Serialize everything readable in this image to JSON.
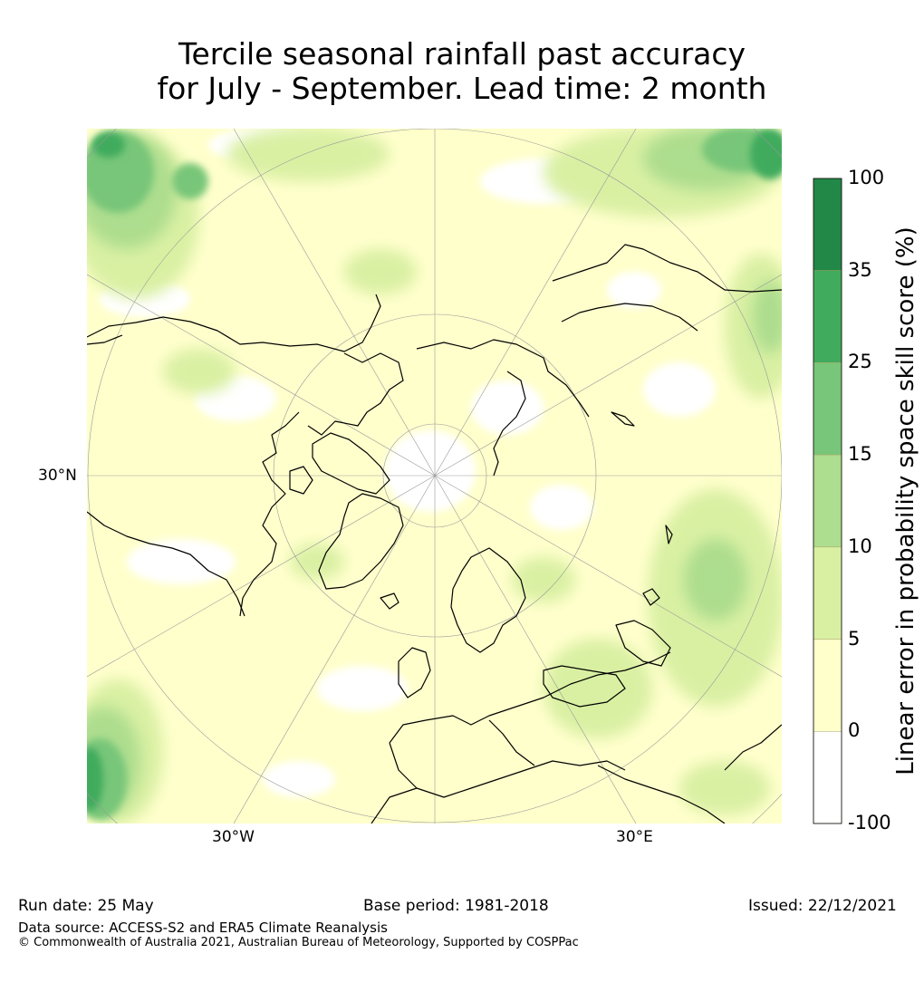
{
  "title_line1": "Tercile seasonal rainfall past accuracy",
  "title_line2": "for July - September. Lead time: 2 month",
  "map": {
    "projection": "north-polar-stereographic",
    "graticule_labels": {
      "lat_left": "30°N",
      "lon_bottom_left": "30°W",
      "lon_bottom_right": "30°E"
    },
    "ocean_color": "#ffffff",
    "coastline_color": "#000000",
    "dominant_class": "0-5"
  },
  "colorbar": {
    "label": "Linear error in probability space skill score (%)",
    "ticks": [
      "100",
      "35",
      "25",
      "15",
      "10",
      "5",
      "0",
      "-100"
    ],
    "classes": [
      {
        "range": "35-100",
        "color": "#228847"
      },
      {
        "range": "25-35",
        "color": "#41ab5d"
      },
      {
        "range": "15-25",
        "color": "#78c679"
      },
      {
        "range": "10-15",
        "color": "#addd8e"
      },
      {
        "range": "5-10",
        "color": "#d9f0a3"
      },
      {
        "range": "0-5",
        "color": "#ffffcc"
      },
      {
        "range": "-100-0",
        "color": "#ffffff"
      }
    ]
  },
  "footer": {
    "run_date": "Run date: 25 May",
    "base_period": "Base period: 1981-2018",
    "issued": "Issued: 22/12/2021",
    "data_source": "Data source: ACCESS-S2 and ERA5 Climate Reanalysis",
    "copyright": "© Commonwealth of Australia 2021, Australian Bureau of Meteorology, Supported by COSPPac"
  }
}
